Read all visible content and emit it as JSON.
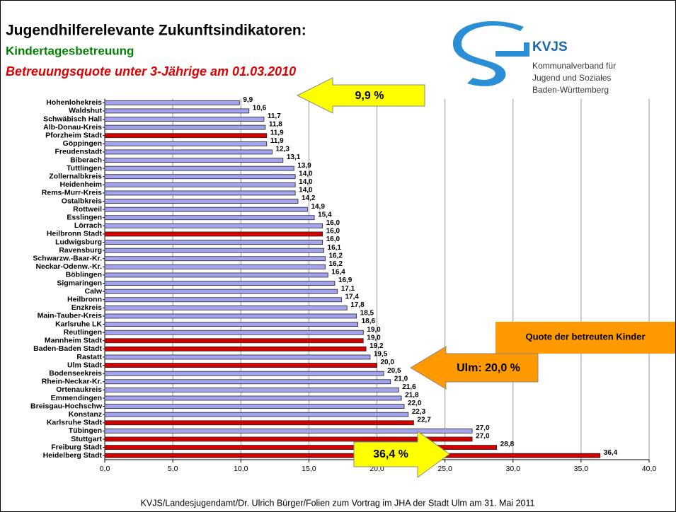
{
  "chart_data": {
    "type": "bar",
    "orientation": "horizontal",
    "title": "Jugendhilferelevante Zukunftsindikatoren:",
    "subtitle": "Kindertagesbetreuung",
    "subtitle2": "Betreuungsquote unter 3-Jährige am 01.03.2010",
    "categories": [
      "Hohenlohekreis",
      "Waldshut",
      "Schwäbisch Hall",
      "Alb-Donau-Kreis",
      "Pforzheim Stadt",
      "Göppingen",
      "Freudenstadt",
      "Biberach",
      "Tuttlingen",
      "Zollernalbkreis",
      "Heidenheim",
      "Rems-Murr-Kreis",
      "Ostalbkreis",
      "Rottweil",
      "Esslingen",
      "Lörrach",
      "Heilbronn Stadt",
      "Ludwigsburg",
      "Ravensburg",
      "Schwarzw.-Baar-Kr.",
      "Neckar-Odenw.-Kr.",
      "Böblingen",
      "Sigmaringen",
      "Calw",
      "Heilbronn",
      "Enzkreis",
      "Main-Tauber-Kreis",
      "Karlsruhe LK",
      "Reutlingen",
      "Mannheim Stadt",
      "Baden-Baden Stadt",
      "Rastatt",
      "Ulm Stadt",
      "Bodenseekreis",
      "Rhein-Neckar-Kr.",
      "Ortenaukreis",
      "Emmendingen",
      "Breisgau-Hochschw",
      "Konstanz",
      "Karlsruhe Stadt",
      "Tübingen",
      "Stuttgart",
      "Freiburg Stadt",
      "Heidelberg Stadt"
    ],
    "values": [
      9.9,
      10.6,
      11.7,
      11.8,
      11.9,
      11.9,
      12.3,
      13.1,
      13.9,
      14.0,
      14.0,
      14.0,
      14.2,
      14.9,
      15.4,
      16.0,
      16.0,
      16.0,
      16.1,
      16.2,
      16.2,
      16.4,
      16.9,
      17.1,
      17.4,
      17.8,
      18.5,
      18.6,
      19.0,
      19.0,
      19.2,
      19.5,
      20.0,
      20.5,
      21.0,
      21.6,
      21.8,
      22.0,
      22.3,
      22.7,
      27.0,
      27.0,
      28.8,
      36.4
    ],
    "value_labels": [
      "9,9",
      "10,6",
      "11,7",
      "11,8",
      "11,9",
      "11,9",
      "12,3",
      "13,1",
      "13,9",
      "14,0",
      "14,0",
      "14,0",
      "14,2",
      "14,9",
      "15,4",
      "16,0",
      "16,0",
      "16,0",
      "16,1",
      "16,2",
      "16,2",
      "16,4",
      "16,9",
      "17,1",
      "17,4",
      "17,8",
      "18,5",
      "18,6",
      "19,0",
      "19,0",
      "19,2",
      "19,5",
      "20,0",
      "20,5",
      "21,0",
      "21,6",
      "21,8",
      "22,0",
      "22,3",
      "22,7",
      "27,0",
      "27,0",
      "28,8",
      "36,4"
    ],
    "bar_colors": [
      "#a3a3f0",
      "#a3a3f0",
      "#a3a3f0",
      "#a3a3f0",
      "#d40000",
      "#a3a3f0",
      "#a3a3f0",
      "#a3a3f0",
      "#a3a3f0",
      "#a3a3f0",
      "#a3a3f0",
      "#a3a3f0",
      "#a3a3f0",
      "#a3a3f0",
      "#a3a3f0",
      "#a3a3f0",
      "#d40000",
      "#a3a3f0",
      "#a3a3f0",
      "#a3a3f0",
      "#a3a3f0",
      "#a3a3f0",
      "#a3a3f0",
      "#a3a3f0",
      "#a3a3f0",
      "#a3a3f0",
      "#a3a3f0",
      "#a3a3f0",
      "#a3a3f0",
      "#d40000",
      "#d40000",
      "#a3a3f0",
      "#d40000",
      "#a3a3f0",
      "#a3a3f0",
      "#a3a3f0",
      "#a3a3f0",
      "#a3a3f0",
      "#a3a3f0",
      "#d40000",
      "#a3a3f0",
      "#d40000",
      "#d40000",
      "#d40000"
    ],
    "xlim": [
      0,
      40
    ],
    "xticks": [
      {
        "value": 0,
        "label": "0,0"
      },
      {
        "value": 5,
        "label": "5,0"
      },
      {
        "value": 10,
        "label": "10,0"
      },
      {
        "value": 15,
        "label": "15,0"
      },
      {
        "value": 20,
        "label": "20,0"
      },
      {
        "value": 25,
        "label": "25,0"
      },
      {
        "value": 30,
        "label": "30,0"
      },
      {
        "value": 35,
        "label": "35,0"
      },
      {
        "value": 40,
        "label": "40,0"
      }
    ],
    "grid": true,
    "annotations": [
      "9,9 %",
      "Quote der betreuten Kinder",
      "Ulm: 20,0 %",
      "36,4 %"
    ]
  },
  "logo": {
    "name": "KVJS",
    "lines": [
      "Kommunalverband für",
      "Jugend und Soziales",
      "Baden-Württemberg"
    ]
  },
  "footer": "KVJS/Landesjugendamt/Dr. Ulrich Bürger/Folien zum Vortrag im JHA der Stadt Ulm am 31. Mai 2011"
}
